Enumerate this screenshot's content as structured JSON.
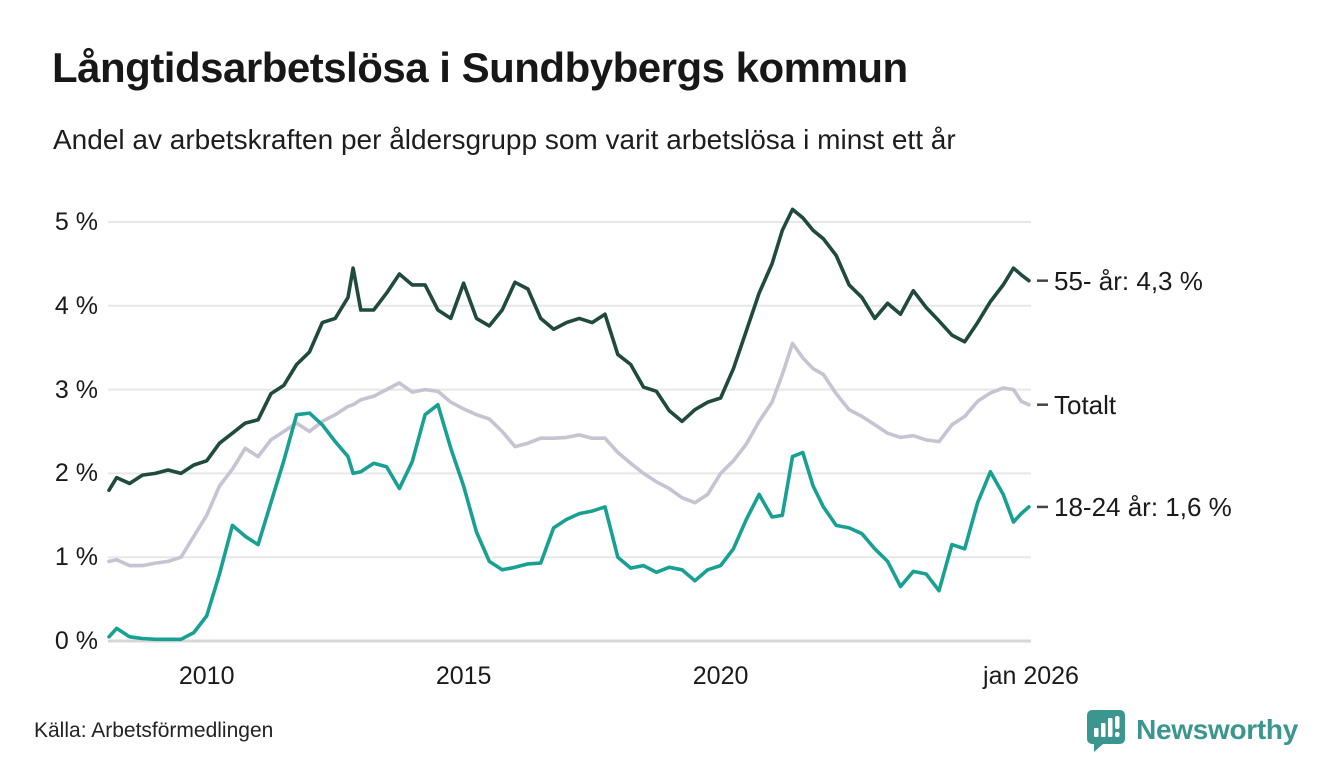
{
  "header": {
    "title": "Långtidsarbetslösa i Sundbybergs kommun",
    "subtitle": "Andel av arbetskraften per åldersgrupp som varit arbetslösa i minst ett år"
  },
  "footer": {
    "source": "Källa: Arbetsförmedlingen",
    "brand": "Newsworthy"
  },
  "colors": {
    "series_55": "#1f4a3d",
    "series_total": "#c6c4d2",
    "series_1824": "#18a192",
    "grid": "#e7e7e7",
    "baseline": "#d7d7d7",
    "label_tick": "#444444",
    "text": "#1a1a1a",
    "brand_teal": "#3a968e"
  },
  "chart_data": {
    "type": "line",
    "title": "Långtidsarbetslösa i Sundbybergs kommun",
    "subtitle": "Andel av arbetskraften per åldersgrupp som varit arbetslösa i minst ett år",
    "x_unit": "decimal_year",
    "xlim": [
      2008.08,
      2026.04
    ],
    "ylim": [
      0,
      5.3
    ],
    "grid": "horizontal",
    "y_ticks": [
      0,
      1,
      2,
      3,
      4,
      5
    ],
    "y_tick_labels": [
      "0 %",
      "1 %",
      "2 %",
      "3 %",
      "4 %",
      "5 %"
    ],
    "x_ticks": [
      2010,
      2015,
      2020,
      2026.04
    ],
    "x_tick_labels": [
      "2010",
      "2015",
      "2020",
      "jan 2026"
    ],
    "x": [
      2008.1,
      2008.25,
      2008.5,
      2008.75,
      2009.0,
      2009.25,
      2009.5,
      2009.75,
      2010.0,
      2010.25,
      2010.5,
      2010.75,
      2011.0,
      2011.25,
      2011.5,
      2011.75,
      2012.0,
      2012.25,
      2012.5,
      2012.75,
      2012.85,
      2013.0,
      2013.25,
      2013.5,
      2013.75,
      2014.0,
      2014.25,
      2014.5,
      2014.75,
      2015.0,
      2015.25,
      2015.5,
      2015.75,
      2016.0,
      2016.25,
      2016.5,
      2016.75,
      2017.0,
      2017.25,
      2017.5,
      2017.75,
      2018.0,
      2018.25,
      2018.5,
      2018.75,
      2019.0,
      2019.25,
      2019.5,
      2019.75,
      2020.0,
      2020.25,
      2020.5,
      2020.75,
      2021.0,
      2021.2,
      2021.4,
      2021.6,
      2021.8,
      2022.0,
      2022.25,
      2022.5,
      2022.75,
      2023.0,
      2023.25,
      2023.5,
      2023.75,
      2024.0,
      2024.25,
      2024.5,
      2024.75,
      2025.0,
      2025.25,
      2025.5,
      2025.7,
      2025.85,
      2026.0
    ],
    "series": [
      {
        "name": "55- år",
        "end_label": "55- år: 4,3 %",
        "latest_value_pct": 4.3,
        "color": "#1f4a3d",
        "values": [
          1.8,
          1.95,
          1.88,
          1.98,
          2.0,
          2.04,
          2.0,
          2.1,
          2.15,
          2.36,
          2.48,
          2.6,
          2.64,
          2.95,
          3.05,
          3.3,
          3.45,
          3.8,
          3.85,
          4.1,
          4.45,
          3.95,
          3.95,
          4.15,
          4.38,
          4.25,
          4.25,
          3.95,
          3.85,
          4.27,
          3.85,
          3.76,
          3.95,
          4.28,
          4.2,
          3.85,
          3.72,
          3.8,
          3.85,
          3.8,
          3.9,
          3.42,
          3.3,
          3.03,
          2.98,
          2.75,
          2.62,
          2.76,
          2.85,
          2.9,
          3.25,
          3.7,
          4.15,
          4.5,
          4.9,
          5.15,
          5.05,
          4.9,
          4.8,
          4.6,
          4.25,
          4.1,
          3.85,
          4.03,
          3.9,
          4.18,
          3.98,
          3.82,
          3.65,
          3.57,
          3.8,
          4.05,
          4.25,
          4.45,
          4.37,
          4.3
        ]
      },
      {
        "name": "Totalt",
        "end_label": "Totalt",
        "latest_value_pct": 2.8,
        "color": "#c6c4d2",
        "values": [
          0.95,
          0.97,
          0.9,
          0.9,
          0.93,
          0.95,
          1.0,
          1.25,
          1.5,
          1.85,
          2.05,
          2.3,
          2.2,
          2.4,
          2.5,
          2.6,
          2.5,
          2.62,
          2.7,
          2.8,
          2.82,
          2.88,
          2.92,
          3.0,
          3.08,
          2.97,
          3.0,
          2.98,
          2.85,
          2.77,
          2.7,
          2.65,
          2.5,
          2.32,
          2.36,
          2.42,
          2.42,
          2.43,
          2.46,
          2.42,
          2.42,
          2.25,
          2.12,
          2.0,
          1.9,
          1.82,
          1.71,
          1.65,
          1.75,
          2.0,
          2.15,
          2.35,
          2.62,
          2.85,
          3.18,
          3.55,
          3.38,
          3.25,
          3.18,
          2.95,
          2.76,
          2.68,
          2.58,
          2.48,
          2.43,
          2.45,
          2.4,
          2.38,
          2.58,
          2.68,
          2.86,
          2.96,
          3.02,
          3.0,
          2.86,
          2.82
        ]
      },
      {
        "name": "18-24 år",
        "end_label": "18-24 år: 1,6 %",
        "latest_value_pct": 1.6,
        "color": "#18a192",
        "values": [
          0.05,
          0.15,
          0.05,
          0.03,
          0.02,
          0.02,
          0.02,
          0.1,
          0.3,
          0.8,
          1.38,
          1.25,
          1.15,
          1.65,
          2.15,
          2.7,
          2.72,
          2.58,
          2.38,
          2.2,
          2.0,
          2.02,
          2.12,
          2.08,
          1.82,
          2.14,
          2.7,
          2.82,
          2.3,
          1.85,
          1.3,
          0.95,
          0.85,
          0.88,
          0.92,
          0.93,
          1.35,
          1.45,
          1.52,
          1.55,
          1.6,
          1.0,
          0.87,
          0.9,
          0.82,
          0.88,
          0.85,
          0.72,
          0.85,
          0.9,
          1.1,
          1.45,
          1.75,
          1.48,
          1.5,
          2.2,
          2.25,
          1.85,
          1.6,
          1.38,
          1.35,
          1.28,
          1.1,
          0.95,
          0.65,
          0.83,
          0.8,
          0.6,
          1.15,
          1.1,
          1.65,
          2.02,
          1.75,
          1.42,
          1.52,
          1.6
        ]
      }
    ]
  }
}
